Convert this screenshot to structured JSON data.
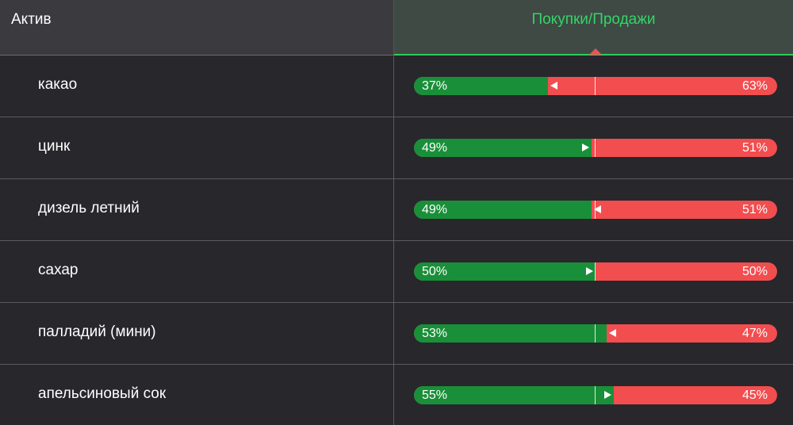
{
  "header": {
    "asset_label": "Актив",
    "buy_sell_label": "Покупки/Продажи"
  },
  "colors": {
    "buy": "#1a8f39",
    "sell": "#f24d4f",
    "accent": "#35d468"
  },
  "rows": [
    {
      "name": "какао",
      "buy_label": "37%",
      "sell_label": "63%",
      "buy_fraction": 0.37,
      "trend": "left"
    },
    {
      "name": "цинк",
      "buy_label": "49%",
      "sell_label": "51%",
      "buy_fraction": 0.49,
      "trend": "right"
    },
    {
      "name": "дизель летний",
      "buy_label": "49%",
      "sell_label": "51%",
      "buy_fraction": 0.49,
      "trend": "left"
    },
    {
      "name": "сахар",
      "buy_label": "50%",
      "sell_label": "50%",
      "buy_fraction": 0.5,
      "trend": "right"
    },
    {
      "name": "палладий (мини)",
      "buy_label": "53%",
      "sell_label": "47%",
      "buy_fraction": 0.53,
      "trend": "left"
    },
    {
      "name": "апельсиновый сок",
      "buy_label": "55%",
      "sell_label": "45%",
      "buy_fraction": 0.55,
      "trend": "right"
    }
  ]
}
